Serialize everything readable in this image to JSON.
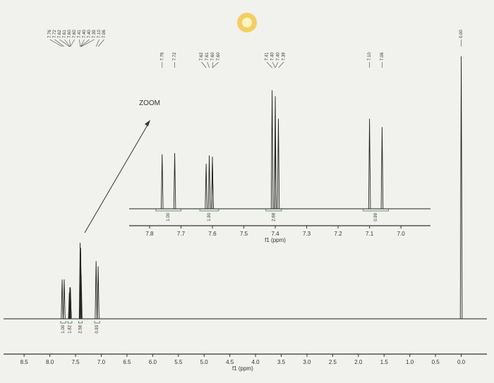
{
  "chart_data": [
    {
      "type": "spectrum",
      "x_label": "f1 (ppm)",
      "xlim": [
        8.9,
        -0.5
      ],
      "xticks": [
        8.5,
        {
          "value": 8,
          "label": "8.0"
        },
        7.5,
        {
          "value": 7,
          "label": "7.0"
        },
        6.5,
        {
          "value": 6,
          "label": "6.0"
        },
        5.5,
        {
          "value": 5,
          "label": "5.0"
        },
        4.5,
        {
          "value": 4,
          "label": "4.0"
        },
        3.5,
        {
          "value": 3,
          "label": "3.0"
        },
        2.5,
        {
          "value": 2,
          "label": "2.0"
        },
        1.5,
        {
          "value": 1,
          "label": "1.0"
        },
        0.5,
        {
          "value": 0,
          "label": "0.0"
        }
      ],
      "ylim": [
        0,
        100
      ],
      "peaks": [
        {
          "value": 7.76,
          "label": "7.76"
        },
        {
          "value": 7.72,
          "label": "7.72"
        },
        {
          "value": 7.62,
          "label": "7.62"
        },
        {
          "value": 7.61,
          "label": "7.61"
        },
        {
          "value": 7.6,
          "label": "7.60"
        },
        {
          "value": 7.6,
          "label": "7.60"
        },
        {
          "value": 7.41,
          "label": "7.41"
        },
        {
          "value": 7.4,
          "label": "7.40"
        },
        {
          "value": 7.4,
          "label": "7.40"
        },
        {
          "value": 7.39,
          "label": "7.39"
        },
        {
          "value": 7.1,
          "label": "7.10"
        },
        {
          "value": 7.06,
          "label": "7.06"
        },
        {
          "value": 0,
          "label": "0.00"
        }
      ],
      "heights": [
        15,
        15,
        10,
        12,
        12,
        11,
        29,
        27,
        25,
        17,
        22,
        20,
        100
      ],
      "integrals": [
        {
          "value": 1,
          "label": "1.00",
          "x": [
            7.79,
            7.69
          ]
        },
        {
          "value": 1.82,
          "label": "1.82",
          "x": [
            7.65,
            7.57
          ]
        },
        {
          "value": 2.58,
          "label": "2.58",
          "x": [
            7.44,
            7.37
          ]
        },
        {
          "value": 0.93,
          "label": "0.93",
          "x": [
            7.13,
            7.03
          ]
        }
      ],
      "color": "#222222"
    },
    {
      "type": "spectrum",
      "annotation": "ZOOM",
      "x_label": "f1 (ppm)",
      "xlim": [
        7.865,
        6.906
      ],
      "xticks": [
        7.8,
        7.7,
        7.6,
        7.5,
        7.4,
        7.3,
        7.2,
        7.1,
        {
          "value": 7,
          "label": "7.0"
        }
      ],
      "ylim": [
        0,
        100
      ],
      "peaks": [
        {
          "value": 7.76,
          "label": "7.76"
        },
        {
          "value": 7.72,
          "label": "7.72"
        },
        {
          "value": 7.62,
          "label": "7.62"
        },
        {
          "value": 7.61,
          "label": "7.61"
        },
        {
          "value": 7.6,
          "label": "7.60"
        },
        {
          "value": 7.6,
          "label": "7.60"
        },
        {
          "value": 7.41,
          "label": "7.41"
        },
        {
          "value": 7.4,
          "label": "7.40"
        },
        {
          "value": 7.4,
          "label": "7.40"
        },
        {
          "value": 7.39,
          "label": "7.39"
        },
        {
          "value": 7.1,
          "label": "7.10"
        },
        {
          "value": 7.06,
          "label": "7.06"
        }
      ],
      "heights": [
        46,
        47,
        38,
        45,
        44,
        40,
        100,
        95,
        60,
        76,
        76,
        69
      ],
      "integrals": [
        {
          "value": 1,
          "label": "1.00",
          "x": [
            7.78,
            7.7
          ]
        },
        {
          "value": 1.9,
          "label": "1.90",
          "x": [
            7.64,
            7.58
          ]
        },
        {
          "value": 2.68,
          "label": "2.68",
          "x": [
            7.43,
            7.38
          ]
        },
        {
          "value": 0.99,
          "label": "0.99",
          "x": [
            7.12,
            7.04
          ]
        }
      ],
      "color": "#222222"
    }
  ]
}
